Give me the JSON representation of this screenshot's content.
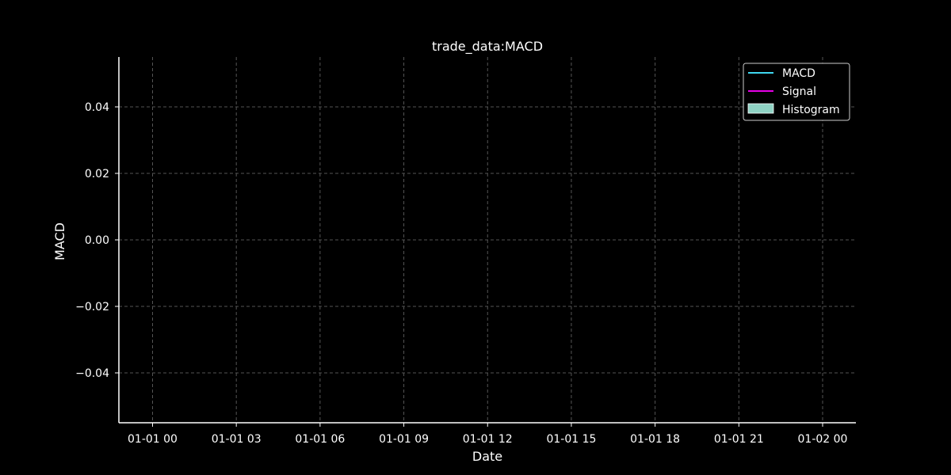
{
  "chart_data": {
    "type": "line",
    "title": "trade_data:MACD",
    "xlabel": "Date",
    "ylabel": "MACD",
    "x_ticks": [
      "01-01 00",
      "01-01 03",
      "01-01 06",
      "01-01 09",
      "01-01 12",
      "01-01 15",
      "01-01 18",
      "01-01 21",
      "01-02 00"
    ],
    "y_ticks": [
      "0.04",
      "0.02",
      "0.00",
      "−0.02",
      "−0.04"
    ],
    "y_tick_values": [
      0.04,
      0.02,
      0.0,
      -0.02,
      -0.04
    ],
    "ylim": [
      -0.055,
      0.055
    ],
    "grid": true,
    "legend_position": "top-right",
    "series": [
      {
        "name": "MACD",
        "kind": "line",
        "color": "#3fd7f0",
        "values": []
      },
      {
        "name": "Signal",
        "kind": "line",
        "color": "#e600e6",
        "values": []
      },
      {
        "name": "Histogram",
        "kind": "bar",
        "color": "#8fd3c4",
        "values": []
      }
    ]
  },
  "colors": {
    "background": "#000000",
    "axis": "#ffffff",
    "grid": "#555555"
  }
}
